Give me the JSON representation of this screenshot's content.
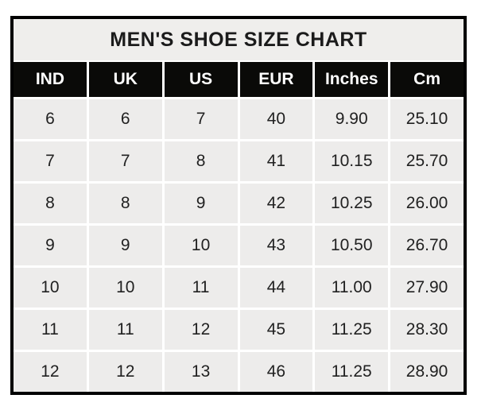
{
  "chart_data": {
    "type": "table",
    "title": "MEN'S SHOE SIZE CHART",
    "columns": [
      "IND",
      "UK",
      "US",
      "EUR",
      "Inches",
      "Cm"
    ],
    "rows": [
      [
        "6",
        "6",
        "7",
        "40",
        "9.90",
        "25.10"
      ],
      [
        "7",
        "7",
        "8",
        "41",
        "10.15",
        "25.70"
      ],
      [
        "8",
        "8",
        "9",
        "42",
        "10.25",
        "26.00"
      ],
      [
        "9",
        "9",
        "10",
        "43",
        "10.50",
        "26.70"
      ],
      [
        "10",
        "10",
        "11",
        "44",
        "11.00",
        "27.90"
      ],
      [
        "11",
        "11",
        "12",
        "45",
        "11.25",
        "28.30"
      ],
      [
        "12",
        "12",
        "13",
        "46",
        "11.25",
        "28.90"
      ]
    ],
    "layout": {
      "legend": "none",
      "grid": "white gaps between cells",
      "header_style": "black background, white bold text"
    }
  },
  "colors": {
    "page_bg": "#ffffff",
    "outer_border": "#010101",
    "title_bg": "#efeeec",
    "title_text": "#1b1b1b",
    "header_bg": "#0a0a08",
    "header_text": "#ffffff",
    "cell_bg": "#edeceb",
    "cell_text": "#212121",
    "grid_gap": "#ffffff"
  }
}
